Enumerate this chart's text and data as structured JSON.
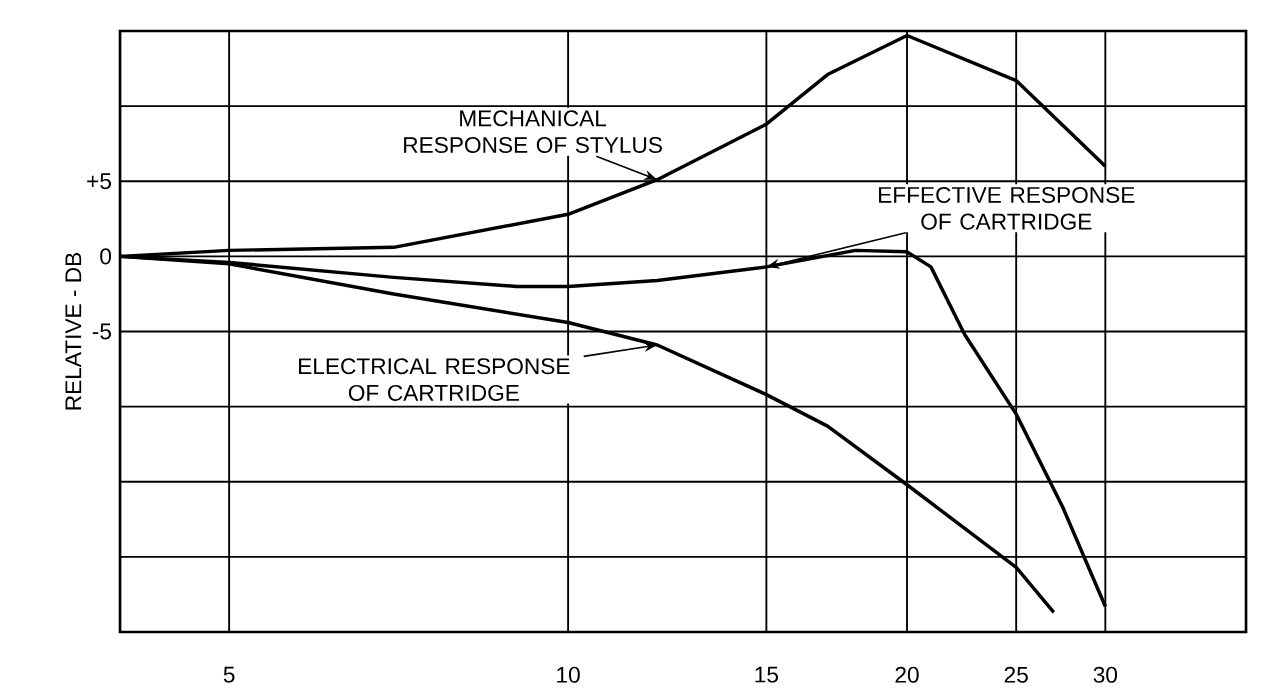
{
  "chart_data": {
    "type": "line",
    "ylabel": "RELATIVE - DB",
    "log": "x",
    "grid": true,
    "marker": "none",
    "line_style": "solid",
    "xlim": [
      4,
      40
    ],
    "ylim": [
      -25,
      15
    ],
    "xticks": [
      5,
      10,
      15,
      20,
      25,
      30
    ],
    "yticks": [
      {
        "value": -25,
        "label": null
      },
      {
        "value": -20,
        "label": null
      },
      {
        "value": -15,
        "label": null
      },
      {
        "value": -10,
        "label": null
      },
      -5,
      0,
      {
        "value": 5,
        "label": "+5"
      },
      {
        "value": 10,
        "label": null
      },
      {
        "value": 15,
        "label": null
      }
    ],
    "series": [
      {
        "name": "MECHANICAL RESPONSE OF STYLUS",
        "color": "#000000",
        "x": [
          4,
          5,
          7,
          10,
          12,
          15,
          17,
          20,
          25,
          30
        ],
        "values": [
          0,
          0.4,
          0.6,
          2.8,
          5.1,
          8.8,
          12.1,
          14.7,
          11.7,
          6.0
        ]
      },
      {
        "name": "EFFECTIVE RESPONSE OF CARTRIDGE",
        "color": "#000000",
        "x": [
          4,
          5,
          7,
          9,
          10,
          12,
          15,
          18,
          20,
          21,
          22.5,
          25,
          27.5,
          30
        ],
        "values": [
          0,
          -0.4,
          -1.4,
          -2.0,
          -2.0,
          -1.6,
          -0.7,
          0.4,
          0.3,
          -0.7,
          -5.2,
          -10.5,
          -16.7,
          -23.3
        ]
      },
      {
        "name": "ELECTRICAL RESPONSE OF CARTRIDGE",
        "color": "#000000",
        "x": [
          4,
          5,
          7,
          10,
          12,
          15,
          17,
          20,
          25,
          27
        ],
        "values": [
          0,
          -0.5,
          -2.5,
          -4.4,
          -5.9,
          -9.2,
          -11.3,
          -15.2,
          -20.7,
          -23.7
        ]
      }
    ]
  }
}
